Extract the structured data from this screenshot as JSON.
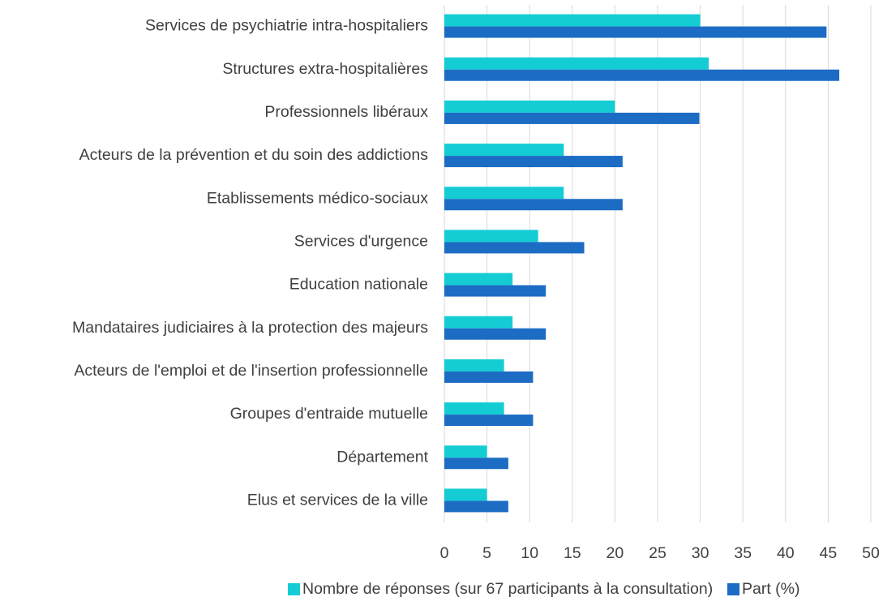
{
  "chart_data": {
    "type": "barh",
    "categories": [
      "Services de psychiatrie intra-hospitaliers",
      "Structures extra-hospitalières",
      "Professionnels libéraux",
      "Acteurs de la prévention et du soin des addictions",
      "Etablissements médico-sociaux",
      "Services d'urgence",
      "Education nationale",
      "Mandataires judiciaires à la protection des majeurs",
      "Acteurs de l'emploi et de l'insertion professionnelle",
      "Groupes d'entraide mutuelle",
      "Département",
      "Elus et services de la ville"
    ],
    "series": [
      {
        "name": "Nombre de réponses (sur 67 participants à la consultation)",
        "color": "#14cdd4",
        "values": [
          30,
          31,
          20,
          14,
          14,
          11,
          8,
          8,
          7,
          7,
          5,
          5
        ]
      },
      {
        "name": "Part (%)",
        "color": "#1c6cc4",
        "values": [
          44.8,
          46.3,
          29.9,
          20.9,
          20.9,
          16.4,
          11.9,
          11.9,
          10.4,
          10.4,
          7.5,
          7.5
        ]
      }
    ],
    "xlim": [
      0,
      50
    ],
    "xticks": [
      0,
      5,
      10,
      15,
      20,
      25,
      30,
      35,
      40,
      45,
      50
    ],
    "grid": true,
    "legend": "bottom"
  }
}
